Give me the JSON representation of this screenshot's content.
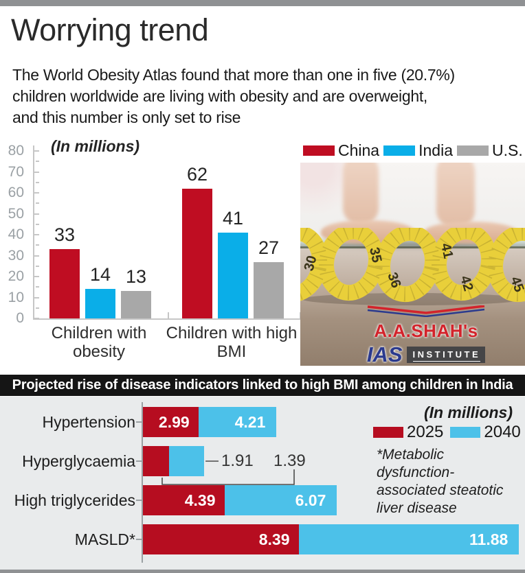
{
  "header": {
    "title": "Worrying trend",
    "subtitle_lines": [
      "The World Obesity Atlas found that more than one in five (20.7%)",
      "children worldwide are living with obesity and are overweight,",
      "and this number is only set to rise"
    ]
  },
  "top_chart": {
    "units_label": "(In millions)"
  },
  "photo": {
    "tape_numbers": [
      "30",
      "35",
      "36",
      "41",
      "42",
      "45"
    ],
    "logo": {
      "name": "A.A.SHAH's",
      "acronym": "IAS",
      "suffix": "INSTITUTE"
    }
  },
  "banner": {
    "text": "Projected rise of disease indicators linked to high BMI among children in India"
  },
  "bottom_chart": {
    "units_label": "(In millions)",
    "footnote": "*Metabolic dysfunction-associated steatotic liver disease"
  },
  "colors": {
    "china_red": "#bf0d22",
    "india_blue": "#0aaee8",
    "us_gray": "#a8a8a8",
    "red_2025": "#b60d20",
    "blue_2040": "#4cc1e9",
    "section_bg": "#e9ebec",
    "banner_bg": "#151515"
  },
  "chart_data": [
    {
      "type": "bar",
      "title": "Children with obesity and high BMI, by country",
      "units": "(In millions)",
      "categories": [
        "Children with obesity",
        "Children with high BMI"
      ],
      "series": [
        {
          "name": "China",
          "color": "#bf0d22",
          "values": [
            33,
            62
          ]
        },
        {
          "name": "India",
          "color": "#0aaee8",
          "values": [
            14,
            41
          ]
        },
        {
          "name": "U.S.",
          "color": "#a8a8a8",
          "values": [
            13,
            27
          ]
        }
      ],
      "ylim": [
        0,
        80
      ],
      "ytick_step": 10,
      "ytick_minor_step": 5,
      "grid": false,
      "legend_position": "top-right"
    },
    {
      "type": "bar-horizontal-stacked",
      "title": "Projected rise of disease indicators linked to high BMI among children in India",
      "units": "(In millions)",
      "categories": [
        "Hypertension",
        "Hyperglycaemia",
        "High triglycerides",
        "MASLD*"
      ],
      "series": [
        {
          "name": "2025",
          "color": "#b60d20",
          "values": [
            2.99,
            1.39,
            4.39,
            8.39
          ]
        },
        {
          "name": "2040",
          "color": "#4cc1e9",
          "values": [
            4.21,
            1.91,
            6.07,
            11.88
          ]
        }
      ],
      "footnote": "*Metabolic dysfunction-associated steatotic liver disease",
      "legend_position": "right"
    }
  ]
}
